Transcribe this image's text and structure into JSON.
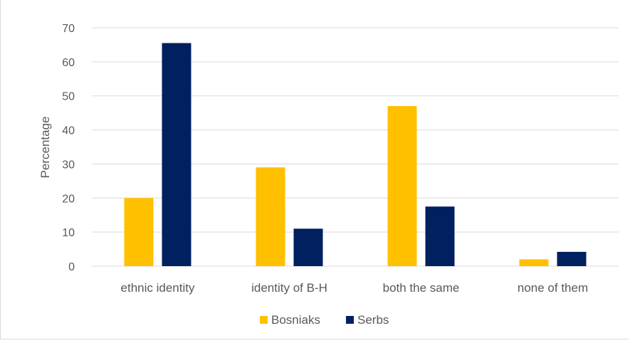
{
  "colors": {
    "background": "#ffffff",
    "gridline": "#d9d9d9",
    "axis_text": "#595959"
  },
  "chart_data": {
    "type": "bar",
    "title": "",
    "xlabel": "",
    "ylabel": "Percentage",
    "ylim": [
      0,
      70
    ],
    "y_ticks": [
      0,
      10,
      20,
      30,
      40,
      50,
      60,
      70
    ],
    "grid": true,
    "legend_position": "bottom",
    "categories": [
      "ethnic identity",
      "identity of B-H",
      "both the same",
      "none of them"
    ],
    "series": [
      {
        "name": "Bosniaks",
        "color": "#ffc000",
        "values": [
          20,
          29,
          47,
          2
        ]
      },
      {
        "name": "Serbs",
        "color": "#002060",
        "values": [
          65.5,
          11,
          17.5,
          4.2
        ]
      }
    ]
  }
}
